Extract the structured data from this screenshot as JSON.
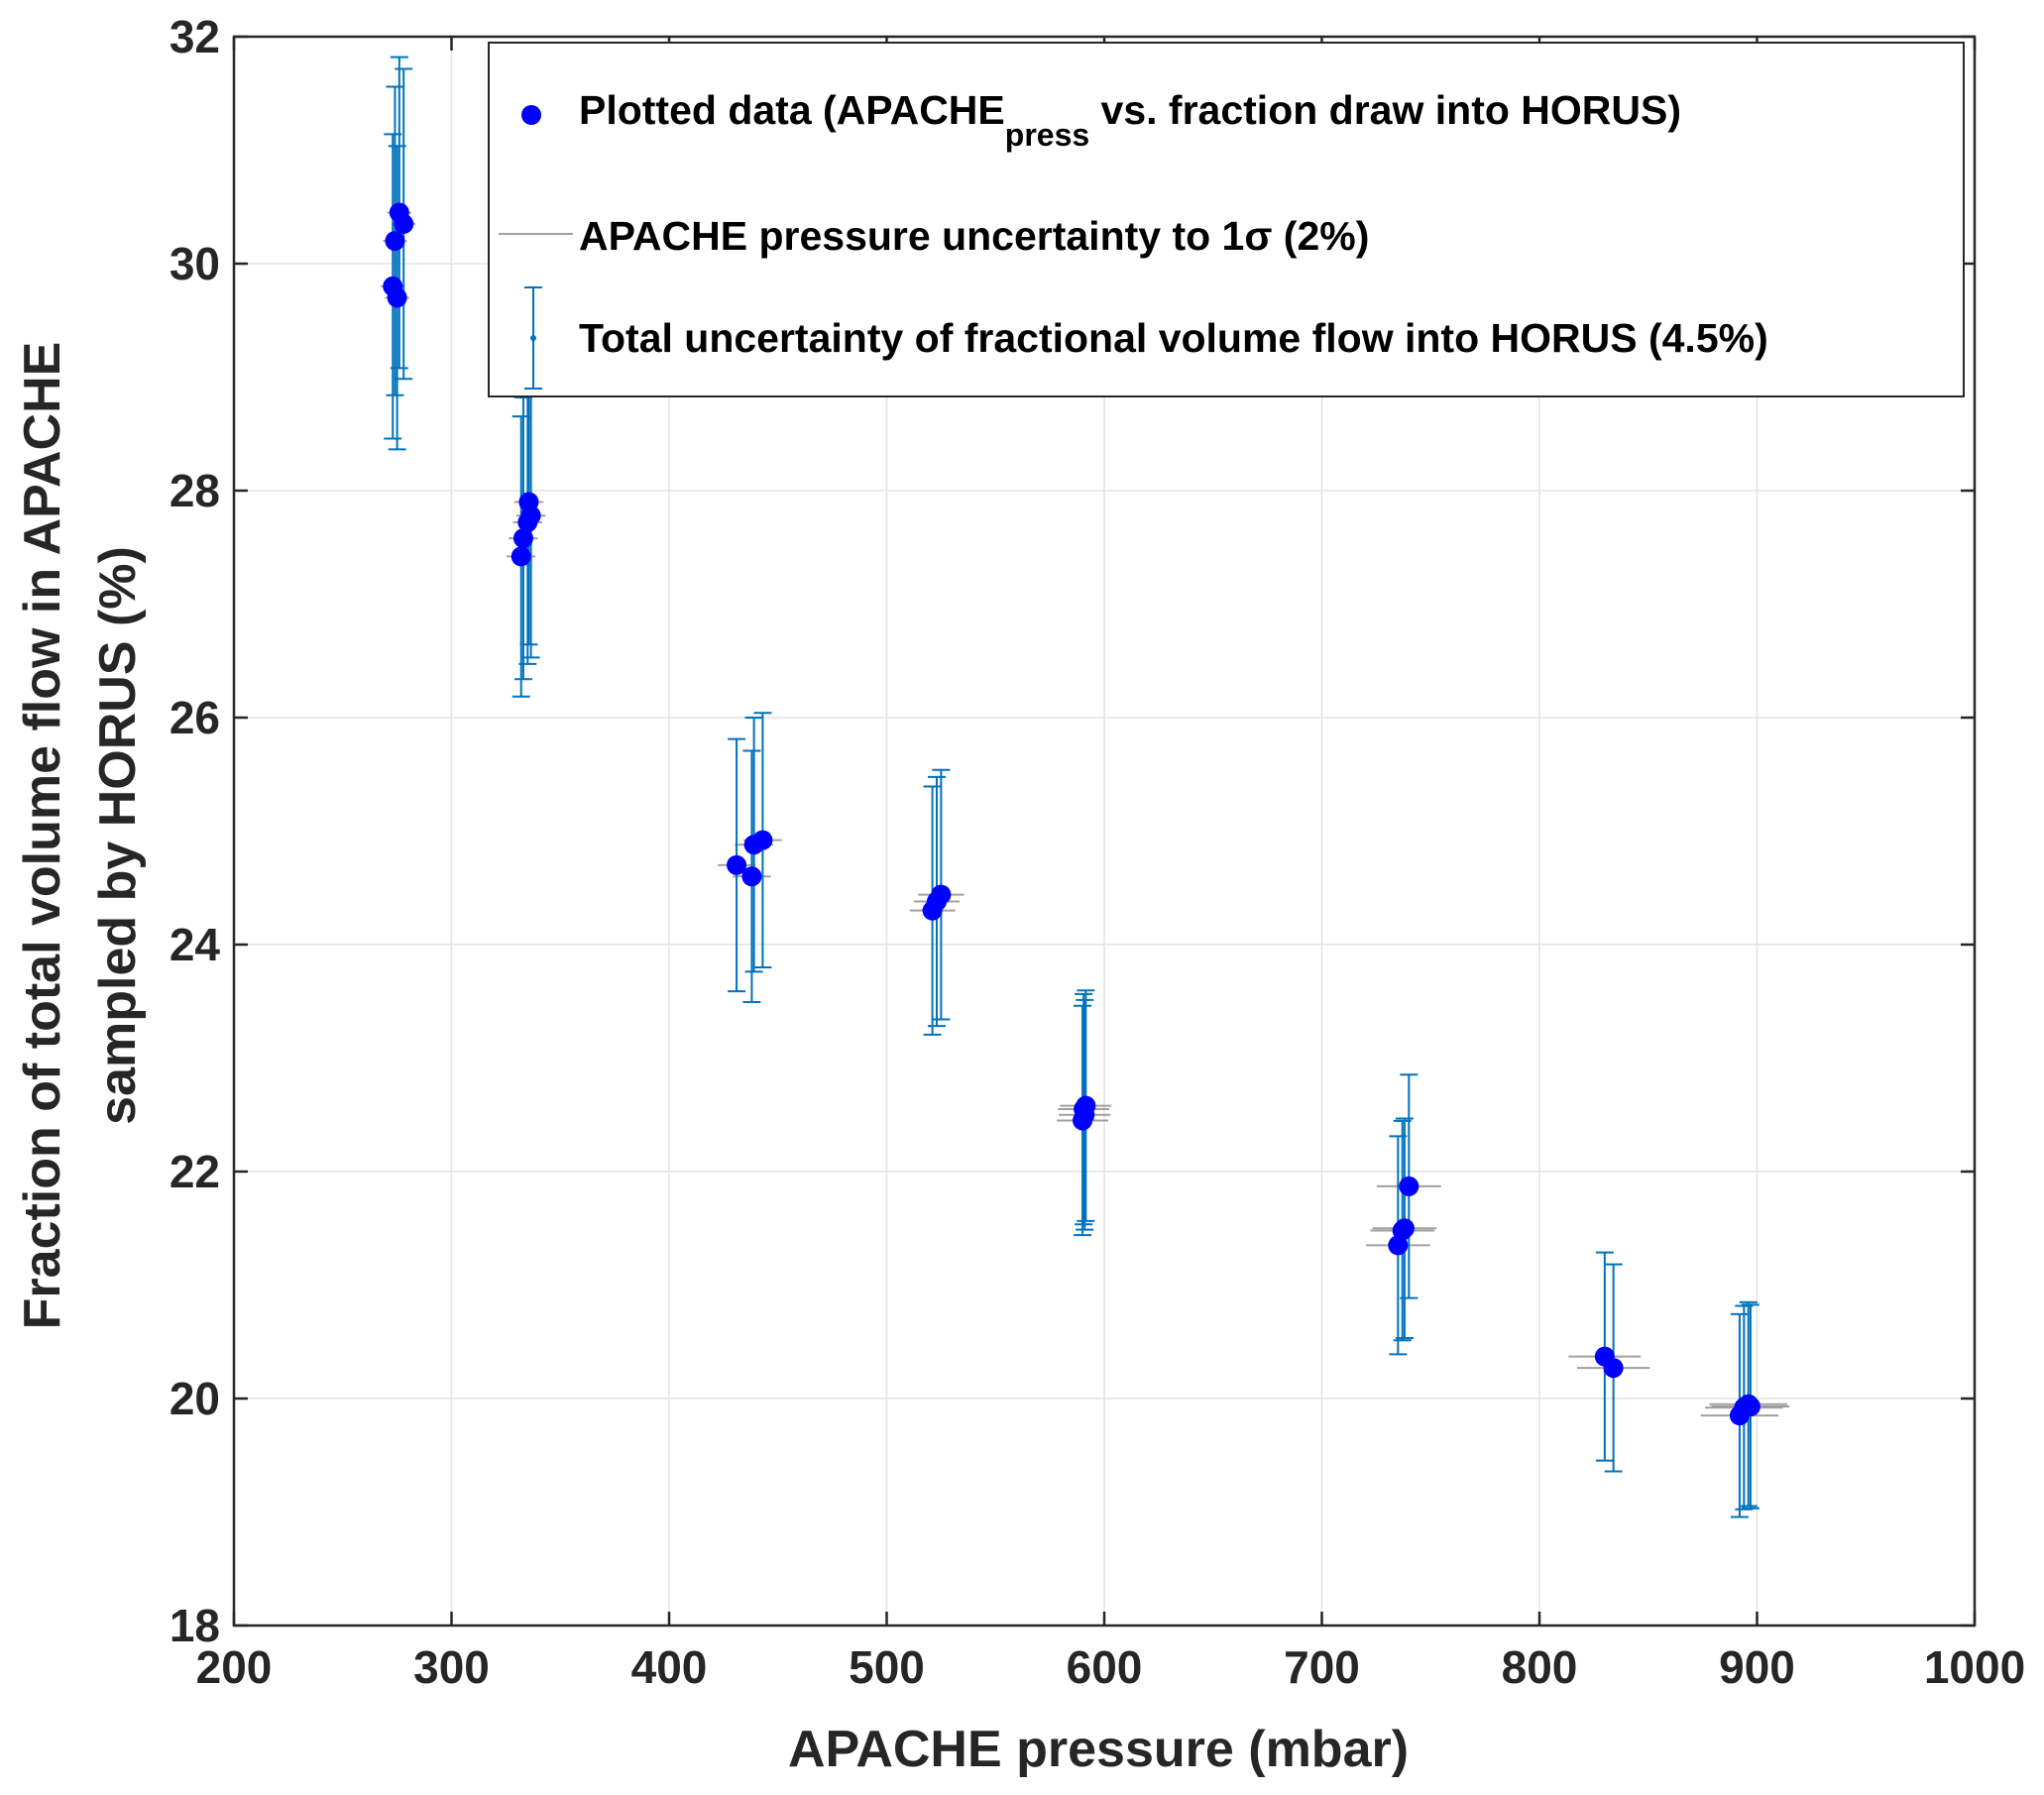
{
  "colors": {
    "marker": "#0000ff",
    "error_bar": "#0072bd",
    "pressure_bar": "#a0a0a0",
    "grid": "#e3e3e3",
    "axis": "#262626"
  },
  "chart_data": {
    "type": "scatter",
    "title": "",
    "xlabel": "APACHE pressure (mbar)",
    "ylabel_lines": [
      "Fraction of total volume flow in APACHE",
      "sampled by HORUS (%)"
    ],
    "xlim": [
      200,
      1000
    ],
    "ylim": [
      18,
      32
    ],
    "xticks": [
      200,
      300,
      400,
      500,
      600,
      700,
      800,
      900,
      1000
    ],
    "yticks": [
      18,
      20,
      22,
      24,
      26,
      28,
      30,
      32
    ],
    "grid": true,
    "legend_position": "top-right",
    "legend": {
      "entry1": {
        "prefix": "Plotted data (APACHE",
        "subscript": "press",
        "suffix": " vs. fraction draw into HORUS)"
      },
      "entry2": "APACHE pressure uncertainty to 1σ (2%)",
      "entry3": "Total uncertainty of fractional volume flow into HORUS (4.5%)"
    },
    "x_uncertainty_pct": 2,
    "y_uncertainty_pct": 4.5,
    "points": [
      {
        "x": 273,
        "y": 29.8
      },
      {
        "x": 274,
        "y": 30.2
      },
      {
        "x": 275,
        "y": 29.7
      },
      {
        "x": 276,
        "y": 30.45
      },
      {
        "x": 278,
        "y": 30.35
      },
      {
        "x": 332,
        "y": 27.42
      },
      {
        "x": 333,
        "y": 27.58
      },
      {
        "x": 335,
        "y": 27.72
      },
      {
        "x": 335.5,
        "y": 27.9
      },
      {
        "x": 336.5,
        "y": 27.78
      },
      {
        "x": 431,
        "y": 24.7
      },
      {
        "x": 438,
        "y": 24.6
      },
      {
        "x": 439,
        "y": 24.88
      },
      {
        "x": 443,
        "y": 24.92
      },
      {
        "x": 521,
        "y": 24.3
      },
      {
        "x": 523,
        "y": 24.38
      },
      {
        "x": 525,
        "y": 24.44
      },
      {
        "x": 590,
        "y": 22.45
      },
      {
        "x": 590.5,
        "y": 22.55
      },
      {
        "x": 591,
        "y": 22.5
      },
      {
        "x": 591.5,
        "y": 22.58
      },
      {
        "x": 735,
        "y": 21.35
      },
      {
        "x": 737,
        "y": 21.48
      },
      {
        "x": 738,
        "y": 21.5
      },
      {
        "x": 740,
        "y": 21.87
      },
      {
        "x": 830,
        "y": 20.37
      },
      {
        "x": 834,
        "y": 20.27
      },
      {
        "x": 892,
        "y": 19.85
      },
      {
        "x": 894,
        "y": 19.92
      },
      {
        "x": 896,
        "y": 19.95
      },
      {
        "x": 897,
        "y": 19.93
      }
    ]
  }
}
